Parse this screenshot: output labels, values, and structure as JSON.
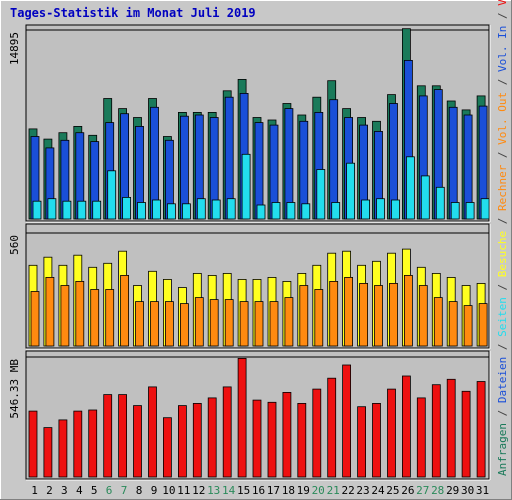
{
  "chart_data": {
    "title": "Tages-Statistik im Monat Juli 2019",
    "type": "bar",
    "days": [
      "1",
      "2",
      "3",
      "4",
      "5",
      "6",
      "7",
      "8",
      "9",
      "10",
      "11",
      "12",
      "13",
      "14",
      "15",
      "16",
      "17",
      "18",
      "19",
      "20",
      "21",
      "22",
      "23",
      "24",
      "25",
      "26",
      "27",
      "28",
      "29",
      "30",
      "31"
    ],
    "weekend_days": [
      "6",
      "7",
      "13",
      "14",
      "20",
      "21",
      "27",
      "28"
    ],
    "colors": {
      "anfragen": "#1a7a5a",
      "dateien": "#1a4fd8",
      "seiten": "#22ddee",
      "besuche": "#ffff20",
      "rechner": "#ff8a10",
      "volumen": "#ee1010",
      "weekend_label": "#2a8a5a",
      "weekday_label": "#000000",
      "title": "#0000c0"
    },
    "panels": [
      {
        "name": "hits",
        "max_label": "14895",
        "ylim": [
          0,
          14895
        ],
        "series": [
          {
            "name": "Anfragen",
            "values": [
              7100,
              6300,
              6800,
              7300,
              6600,
              9500,
              8700,
              8000,
              9500,
              6500,
              8400,
              8400,
              8400,
              10100,
              11000,
              8000,
              7800,
              9100,
              8200,
              9600,
              10900,
              8700,
              8000,
              7700,
              9800,
              15000,
              10500,
              10500,
              9300,
              8600,
              9700
            ]
          },
          {
            "name": "Dateien",
            "values": [
              6500,
              5600,
              6200,
              6800,
              6100,
              7600,
              8300,
              7300,
              8800,
              6200,
              8100,
              8200,
              8000,
              9600,
              9900,
              7600,
              7400,
              8700,
              7700,
              8400,
              9400,
              8000,
              7400,
              6900,
              9100,
              12500,
              9700,
              10200,
              8800,
              8200,
              8900
            ]
          },
          {
            "name": "Seiten",
            "values": [
              1400,
              1600,
              1400,
              1400,
              1400,
              3800,
              1700,
              1300,
              1500,
              1200,
              1200,
              1600,
              1500,
              1600,
              5100,
              1100,
              1300,
              1300,
              1200,
              3900,
              1300,
              4400,
              1500,
              1600,
              1500,
              4900,
              3400,
              2500,
              1300,
              1300,
              1600
            ]
          }
        ]
      },
      {
        "name": "visits",
        "max_label": "560",
        "ylim": [
          0,
          560
        ],
        "series": [
          {
            "name": "Besuche",
            "values": [
              400,
              440,
              400,
              450,
              390,
              410,
              470,
              300,
              370,
              330,
              290,
              360,
              350,
              360,
              330,
              330,
              340,
              320,
              360,
              400,
              460,
              470,
              400,
              420,
              460,
              480,
              390,
              360,
              340,
              300,
              310
            ]
          },
          {
            "name": "Rechner",
            "values": [
              270,
              340,
              300,
              320,
              280,
              280,
              350,
              220,
              220,
              220,
              210,
              240,
              230,
              230,
              220,
              220,
              220,
              240,
              300,
              280,
              320,
              340,
              310,
              300,
              310,
              350,
              300,
              240,
              220,
              200,
              210
            ]
          }
        ]
      },
      {
        "name": "volume",
        "max_label": "546.33 MB",
        "ylim": [
          0,
          546.33
        ],
        "series": [
          {
            "name": "Volumen",
            "values": [
              300,
              225,
              260,
              300,
              305,
              375,
              375,
              325,
              410,
              270,
              325,
              335,
              360,
              410,
              540,
              350,
              340,
              385,
              335,
              400,
              450,
              510,
              320,
              335,
              400,
              460,
              360,
              420,
              445,
              390,
              435
            ]
          }
        ]
      }
    ],
    "legend_right": [
      {
        "text": "Anfragen",
        "color": "#1a7a5a"
      },
      {
        "text": "/",
        "color": "#444444"
      },
      {
        "text": "Dateien",
        "color": "#1a4fd8"
      },
      {
        "text": "/",
        "color": "#444444"
      },
      {
        "text": "Seiten",
        "color": "#22ddee"
      },
      {
        "text": "/",
        "color": "#444444"
      },
      {
        "text": "Besuche",
        "color": "#ffff20"
      },
      {
        "text": "/",
        "color": "#444444"
      },
      {
        "text": "Rechner",
        "color": "#ff8a10"
      },
      {
        "text": "/",
        "color": "#444444"
      },
      {
        "text": "Vol. Out",
        "color": "#ff8a10"
      },
      {
        "text": "/",
        "color": "#444444"
      },
      {
        "text": "Vol. In",
        "color": "#1a4fd8"
      },
      {
        "text": "/",
        "color": "#444444"
      },
      {
        "text": "Volumen",
        "color": "#ee1010"
      }
    ]
  }
}
